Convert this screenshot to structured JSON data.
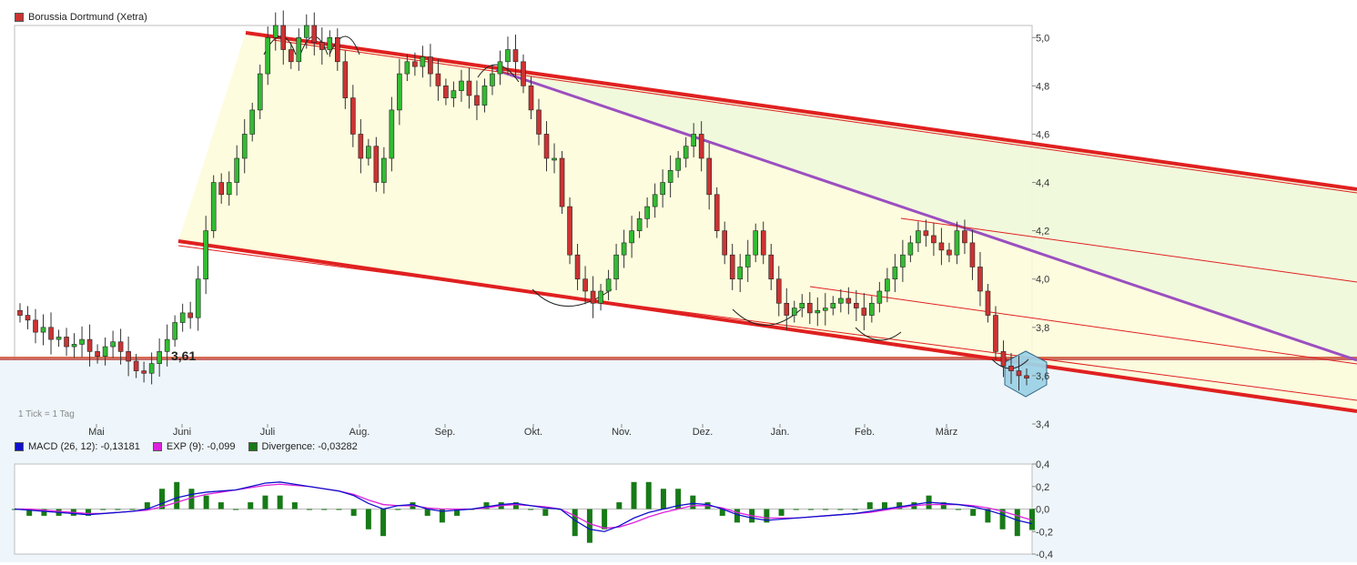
{
  "title": "Borussia Dortmund (Xetra)",
  "tick_note": "1 Tick = 1 Tag",
  "price_marker": "3,61",
  "colors": {
    "up": "#33bb33",
    "down": "#cc3333",
    "channel": "#e02020",
    "trend": "#9b4fc0",
    "macd": "#1010cc",
    "exp": "#dd22dd",
    "divergence": "#177a17",
    "support": "#c0504d",
    "support_zone": "#eef6fb",
    "wedge_fill": "#fdfbd8",
    "green_fill": "#eef8dc",
    "hex": "#9ed3e6"
  },
  "chart_data": [
    {
      "type": "candlestick",
      "name": "Borussia Dortmund (Xetra)",
      "x_ticks": [
        "Mai",
        "Juni",
        "Juli",
        "Aug.",
        "Sep.",
        "Okt.",
        "Nov.",
        "Dez.",
        "Jan.",
        "Feb.",
        "März"
      ],
      "y_ticks": [
        "3,4",
        "3,6",
        "3,8",
        "4,0",
        "4,2",
        "4,4",
        "4,6",
        "4,8",
        "5,0"
      ],
      "ylim": [
        3.4,
        5.0
      ],
      "support_level": 3.61,
      "grid": false,
      "legend": "top-left",
      "closes": [
        3.85,
        3.83,
        3.78,
        3.8,
        3.75,
        3.76,
        3.72,
        3.73,
        3.75,
        3.7,
        3.68,
        3.72,
        3.74,
        3.7,
        3.66,
        3.62,
        3.61,
        3.65,
        3.7,
        3.75,
        3.82,
        3.86,
        3.84,
        4.0,
        4.2,
        4.4,
        4.35,
        4.4,
        4.5,
        4.6,
        4.7,
        4.85,
        5.0,
        5.05,
        4.95,
        4.9,
        5.0,
        5.05,
        4.98,
        4.95,
        5.0,
        4.9,
        4.75,
        4.6,
        4.5,
        4.55,
        4.4,
        4.5,
        4.7,
        4.85,
        4.9,
        4.88,
        4.92,
        4.85,
        4.8,
        4.75,
        4.78,
        4.82,
        4.76,
        4.72,
        4.8,
        4.85,
        4.9,
        4.95,
        4.9,
        4.8,
        4.7,
        4.6,
        4.5,
        4.5,
        4.3,
        4.1,
        4.0,
        3.95,
        3.9,
        3.95,
        4.0,
        4.1,
        4.15,
        4.2,
        4.25,
        4.3,
        4.35,
        4.4,
        4.45,
        4.5,
        4.55,
        4.6,
        4.5,
        4.35,
        4.2,
        4.1,
        4.0,
        4.05,
        4.1,
        4.2,
        4.1,
        4.0,
        3.9,
        3.85,
        3.88,
        3.9,
        3.86,
        3.87,
        3.88,
        3.9,
        3.92,
        3.9,
        3.88,
        3.85,
        3.9,
        3.95,
        4.0,
        4.05,
        4.1,
        4.15,
        4.2,
        4.18,
        4.15,
        4.12,
        4.1,
        4.2,
        4.15,
        4.05,
        3.95,
        3.85,
        3.7,
        3.64,
        3.62,
        3.6,
        3.59
      ]
    },
    {
      "type": "line",
      "name": "MACD",
      "legend": "top-left",
      "y_ticks": [
        "0,4",
        "0,2",
        "0,0",
        "-0,2",
        "-0,4"
      ],
      "ylim": [
        -0.4,
        0.4
      ],
      "series": [
        {
          "name": "MACD (26, 12): -0,13181",
          "values": [
            0.0,
            -0.01,
            -0.02,
            -0.03,
            -0.04,
            -0.05,
            -0.04,
            -0.03,
            -0.02,
            0.0,
            0.05,
            0.1,
            0.13,
            0.15,
            0.16,
            0.17,
            0.2,
            0.23,
            0.24,
            0.22,
            0.2,
            0.18,
            0.16,
            0.12,
            0.05,
            0.0,
            0.03,
            0.04,
            0.0,
            -0.02,
            -0.01,
            0.0,
            0.02,
            0.04,
            0.05,
            0.03,
            0.01,
            0.0,
            -0.1,
            -0.18,
            -0.2,
            -0.15,
            -0.08,
            -0.03,
            0.0,
            0.03,
            0.05,
            0.04,
            0.0,
            -0.05,
            -0.08,
            -0.1,
            -0.09,
            -0.08,
            -0.07,
            -0.06,
            -0.05,
            -0.04,
            -0.02,
            0.0,
            0.02,
            0.04,
            0.06,
            0.05,
            0.04,
            0.02,
            -0.01,
            -0.05,
            -0.1,
            -0.13
          ]
        },
        {
          "name": "EXP (9): -0,099",
          "values": [
            0.0,
            0.0,
            -0.01,
            -0.02,
            -0.03,
            -0.04,
            -0.04,
            -0.03,
            -0.02,
            -0.01,
            0.02,
            0.06,
            0.1,
            0.13,
            0.15,
            0.17,
            0.19,
            0.21,
            0.22,
            0.21,
            0.2,
            0.18,
            0.16,
            0.13,
            0.08,
            0.04,
            0.03,
            0.03,
            0.01,
            0.0,
            0.0,
            0.0,
            0.01,
            0.03,
            0.04,
            0.03,
            0.02,
            0.0,
            -0.06,
            -0.13,
            -0.17,
            -0.16,
            -0.12,
            -0.07,
            -0.03,
            0.0,
            0.03,
            0.03,
            0.01,
            -0.03,
            -0.06,
            -0.08,
            -0.08,
            -0.08,
            -0.07,
            -0.06,
            -0.05,
            -0.04,
            -0.03,
            -0.01,
            0.01,
            0.03,
            0.04,
            0.04,
            0.04,
            0.03,
            0.01,
            -0.02,
            -0.06,
            -0.099
          ]
        },
        {
          "name": "Divergence: -0,03282"
        }
      ]
    }
  ]
}
